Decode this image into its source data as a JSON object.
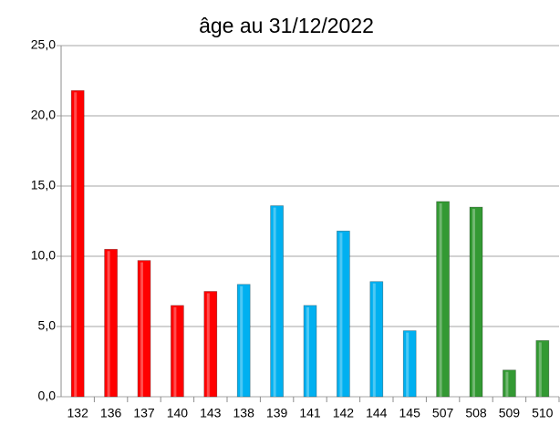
{
  "chart_data": {
    "type": "bar",
    "title": "âge au 31/12/2022",
    "categories": [
      "132",
      "136",
      "137",
      "140",
      "143",
      "138",
      "139",
      "141",
      "142",
      "144",
      "145",
      "507",
      "508",
      "509",
      "510"
    ],
    "values": [
      21.8,
      10.5,
      9.7,
      6.5,
      7.5,
      8.0,
      13.6,
      6.5,
      11.8,
      8.2,
      4.7,
      13.9,
      13.5,
      1.9,
      4.0
    ],
    "colors": [
      "#ff0000",
      "#ff0000",
      "#ff0000",
      "#ff0000",
      "#ff0000",
      "#00b0f0",
      "#00b0f0",
      "#00b0f0",
      "#00b0f0",
      "#00b0f0",
      "#00b0f0",
      "#339933",
      "#339933",
      "#339933",
      "#339933"
    ],
    "ylim": [
      0,
      25
    ],
    "yticks": [
      {
        "value": 0,
        "label": "0,0"
      },
      {
        "value": 5,
        "label": "5,0"
      },
      {
        "value": 10,
        "label": "10,0"
      },
      {
        "value": 15,
        "label": "15,0"
      },
      {
        "value": 20,
        "label": "20,0"
      },
      {
        "value": 25,
        "label": "25,0"
      }
    ],
    "grid": true
  }
}
